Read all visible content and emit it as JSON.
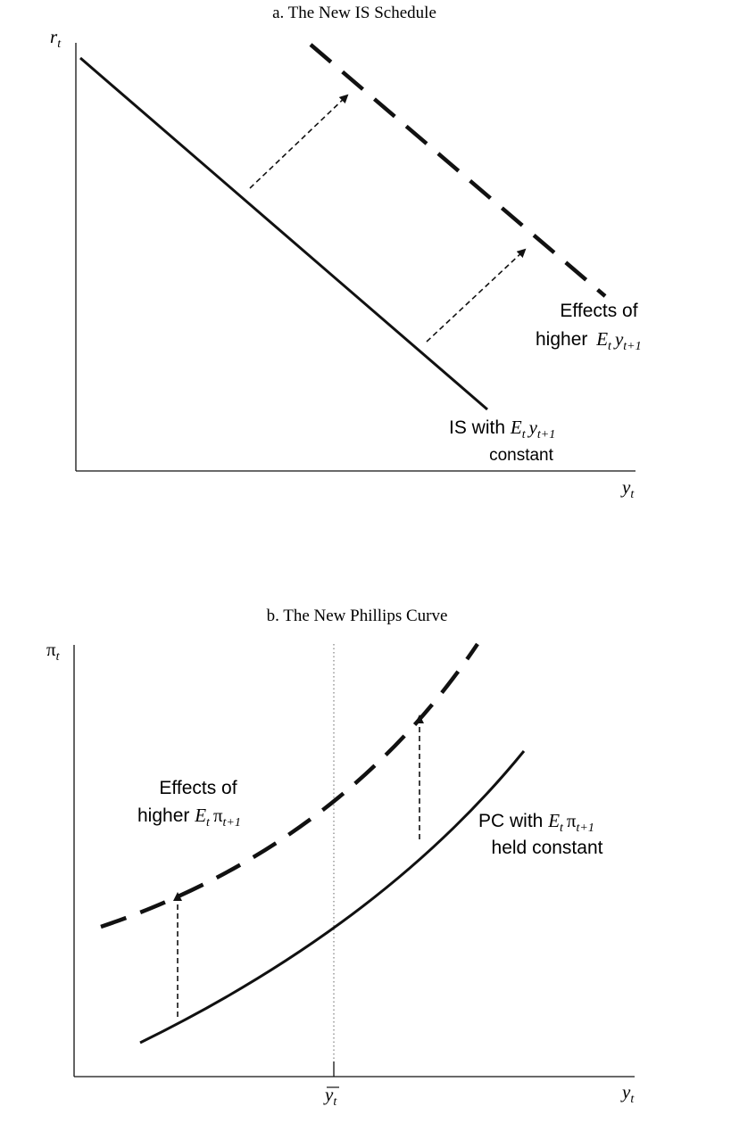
{
  "panel_a": {
    "title": "a. The New IS Schedule",
    "y_axis": {
      "symbol": "r",
      "subscript": "t"
    },
    "x_axis": {
      "symbol": "y",
      "subscript": "t"
    },
    "shift_label": {
      "line1": "Effects of",
      "line2_prefix": "higher ",
      "E": "E",
      "E_sub": "t",
      "var": "y",
      "var_sub": "t+1"
    },
    "base_label": {
      "line1_prefix": "IS with ",
      "E": "E",
      "E_sub": "t",
      "var": "y",
      "var_sub": "t+1",
      "line2": "constant"
    }
  },
  "panel_b": {
    "title": "b. The New Phillips Curve",
    "y_axis": {
      "symbol": "π",
      "subscript": "t"
    },
    "x_axis": {
      "symbol": "y",
      "subscript": "t"
    },
    "x_marker": {
      "symbol": "y",
      "subscript": "t"
    },
    "shift_label": {
      "line1": "Effects of",
      "line2_prefix": "higher ",
      "E": "E",
      "E_sub": "t",
      "var": "π",
      "var_sub": "t+1"
    },
    "base_label": {
      "line1_prefix": "PC with ",
      "E": "E",
      "E_sub": "t",
      "var": "π",
      "var_sub": "t+1",
      "line2": "held constant"
    }
  }
}
